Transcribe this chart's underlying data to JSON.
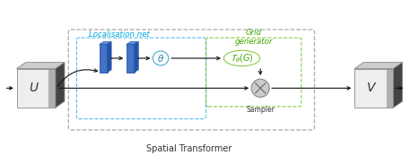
{
  "fig_width": 4.57,
  "fig_height": 1.83,
  "dpi": 100,
  "bg_color": "#ffffff",
  "title_text": "Spatial Transformer",
  "title_fontsize": 7,
  "U_label": "$U$",
  "V_label": "$V$",
  "theta_label": "$\\theta$",
  "thetaG_label": "$\\mathcal{T}_{\\theta}(G)$",
  "loc_net_label": "Localisation net",
  "grid_gen_label": "Grid\ngenerator",
  "sampler_label": "Sampler",
  "loc_net_text_color": "#00aadd",
  "grid_gen_text_color": "#44aa00",
  "loc_box_color": "#55bbee",
  "grid_box_color": "#88cc44",
  "outer_box_color": "#aaaaaa",
  "bar_fc": "#4472c4",
  "bar_ec": "#2255aa",
  "bar_top_fc": "#6699dd",
  "bar_right_fc": "#2255aa",
  "cube_front_fc": "#eeeeee",
  "cube_top_fc": "#cccccc",
  "cube_right_fc": "#444444",
  "cube_ec": "#888888",
  "sampler_fc": "#cccccc",
  "sampler_ec": "#888888",
  "arrow_color": "#111111"
}
